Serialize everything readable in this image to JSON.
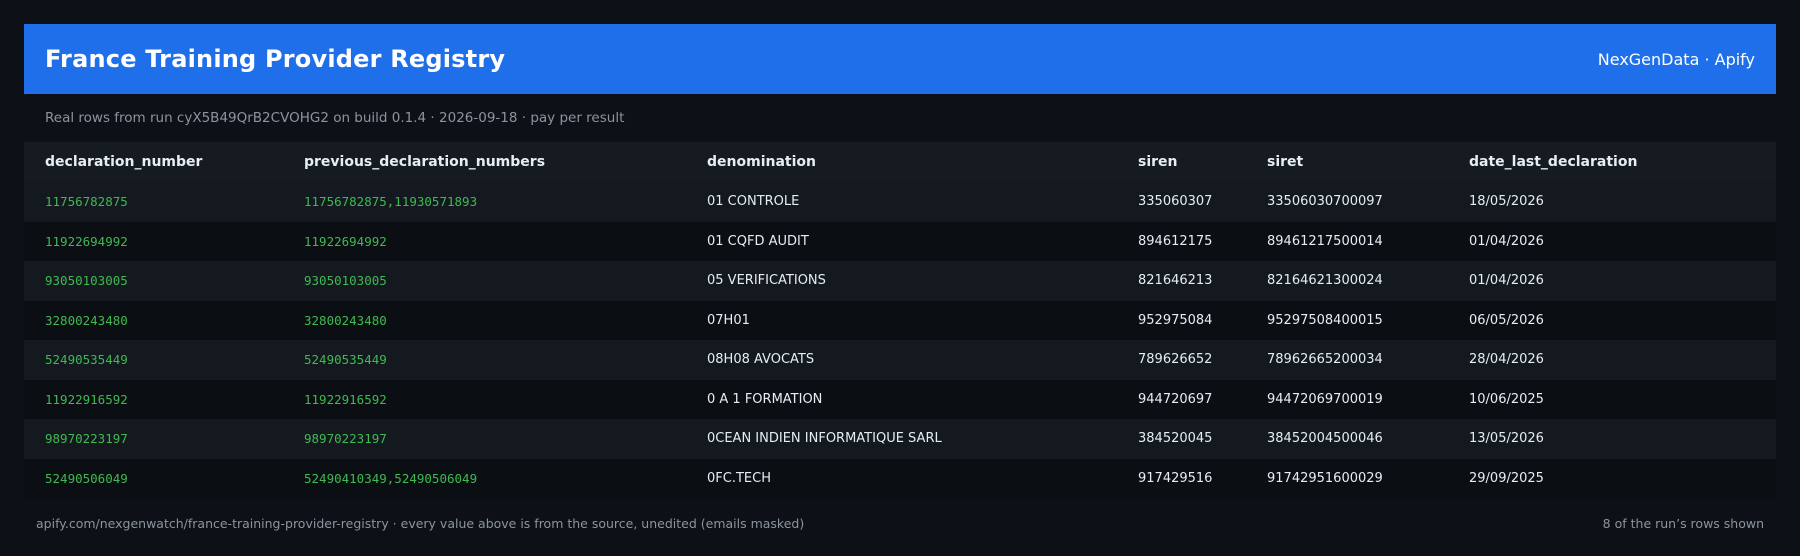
{
  "header": {
    "title": "France Training Provider Registry",
    "brand": "NexGenData · Apify"
  },
  "subtitle": "Real rows from run cyX5B49QrB2CVOHG2 on build 0.1.4 · 2026-09-18 · pay per result",
  "table": {
    "columns": [
      "declaration_number",
      "previous_declaration_numbers",
      "denomination",
      "siren",
      "siret",
      "date_last_declaration"
    ],
    "rows": [
      [
        "11756782875",
        "11756782875,11930571893",
        "01 CONTROLE",
        "335060307",
        "33506030700097",
        "18/05/2026"
      ],
      [
        "11922694992",
        "11922694992",
        "01 CQFD AUDIT",
        "894612175",
        "89461217500014",
        "01/04/2026"
      ],
      [
        "93050103005",
        "93050103005",
        "05 VERIFICATIONS",
        "821646213",
        "82164621300024",
        "01/04/2026"
      ],
      [
        "32800243480",
        "32800243480",
        "07H01",
        "952975084",
        "95297508400015",
        "06/05/2026"
      ],
      [
        "52490535449",
        "52490535449",
        "08H08 AVOCATS",
        "789626652",
        "78962665200034",
        "28/04/2026"
      ],
      [
        "11922916592",
        "11922916592",
        "0 A 1 FORMATION",
        "944720697",
        "94472069700019",
        "10/06/2025"
      ],
      [
        "98970223197",
        "98970223197",
        "0CEAN INDIEN INFORMATIQUE SARL",
        "384520045",
        "38452004500046",
        "13/05/2026"
      ],
      [
        "52490506049",
        "52490410349,52490506049",
        "0FC.TECH",
        "917429516",
        "91742951600029",
        "29/09/2025"
      ]
    ]
  },
  "footer": {
    "left": "apify.com/nexgenwatch/france-training-provider-registry  ·  every value above is from the source, unedited (emails masked)",
    "right": "8 of the run’s rows shown"
  },
  "colors": {
    "header_bg": "#1f6feb",
    "page_bg": "#0d1117",
    "id_green": "#3fb950"
  }
}
